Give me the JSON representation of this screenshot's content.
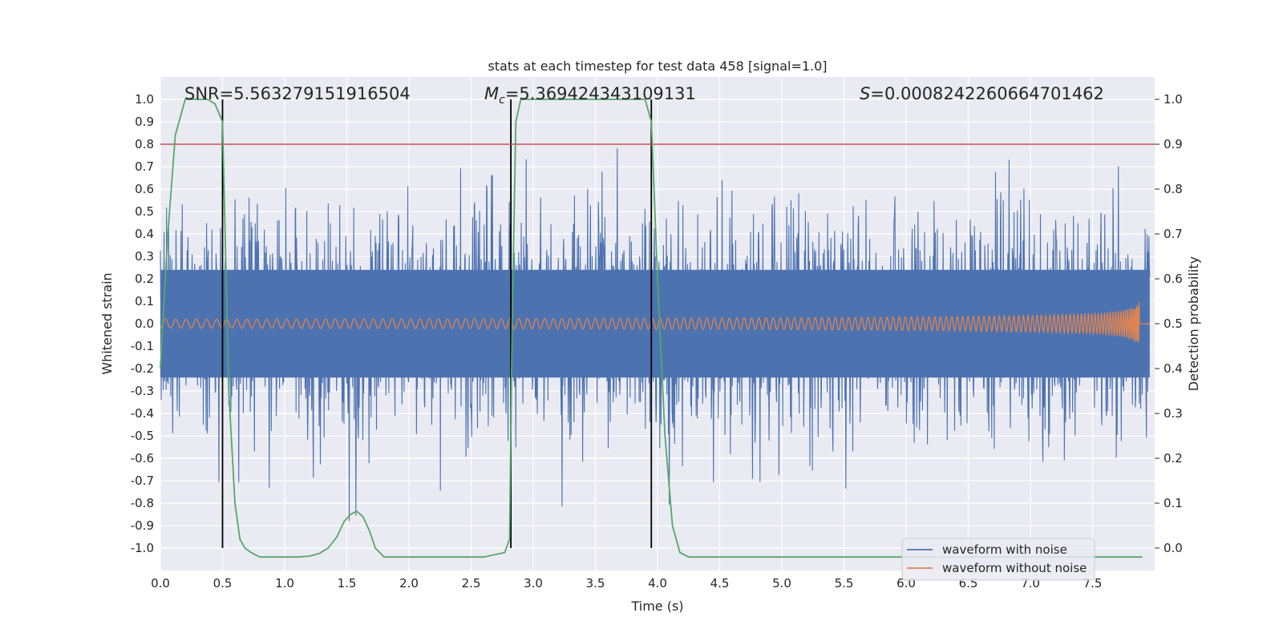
{
  "chart_data": {
    "type": "line",
    "title": "stats at each timestep for test data 458 [signal=1.0]",
    "xlabel": "Time (s)",
    "ylabel": "Whitened strain",
    "y2label": "Detection probability",
    "xlim": [
      0.0,
      8.0
    ],
    "ylim": [
      -1.1,
      1.1
    ],
    "y2lim": [
      -0.05,
      1.05
    ],
    "xticks": [
      "0.0",
      "0.5",
      "1.0",
      "1.5",
      "2.0",
      "2.5",
      "3.0",
      "3.5",
      "4.0",
      "4.5",
      "5.0",
      "5.5",
      "6.0",
      "6.5",
      "7.0",
      "7.5"
    ],
    "yticks": [
      "1.0",
      "0.9",
      "0.8",
      "0.7",
      "0.6",
      "0.5",
      "0.4",
      "0.3",
      "0.2",
      "0.1",
      "0.0",
      "-0.1",
      "-0.2",
      "-0.3",
      "-0.4",
      "-0.5",
      "-0.6",
      "-0.7",
      "-0.8",
      "-0.9",
      "-1.0"
    ],
    "y2ticks": [
      "1.0",
      "0.9",
      "0.8",
      "0.7",
      "0.6",
      "0.5",
      "0.4",
      "0.3",
      "0.2",
      "0.1",
      "0.0"
    ],
    "annotations": {
      "snr": "SNR=5.563279151916504",
      "mc_symbol": "M",
      "mc_sub": "c",
      "mc_value": "=5.369424343109131",
      "s_symbol": "S",
      "s_value": "=0.0008242260664701462"
    },
    "threshold": {
      "y2": 0.9,
      "color": "#c44e52"
    },
    "vlines_x": [
      0.5,
      2.82,
      3.95
    ],
    "series": [
      {
        "name": "waveform with noise",
        "color": "#4c72b0",
        "amplitude_range": [
          -1.0,
          1.0
        ]
      },
      {
        "name": "waveform without noise",
        "color": "#dd8452",
        "start_amplitude": 0.02,
        "peak_amplitude": 0.15,
        "merger_time": 7.88
      },
      {
        "name": "detection probability",
        "color": "#55a868",
        "axis": "y2",
        "x": [
          0.0,
          0.06,
          0.12,
          0.2,
          0.3,
          0.38,
          0.44,
          0.5,
          0.55,
          0.6,
          0.64,
          0.68,
          0.73,
          0.8,
          0.95,
          1.1,
          1.2,
          1.28,
          1.35,
          1.42,
          1.48,
          1.53,
          1.58,
          1.63,
          1.68,
          1.73,
          1.8,
          1.95,
          2.6,
          2.77,
          2.81,
          2.83,
          2.86,
          2.9,
          3.0,
          3.5,
          3.9,
          3.95,
          4.0,
          4.06,
          4.12,
          4.18,
          4.25,
          4.35,
          7.9
        ],
        "y": [
          0.4,
          0.7,
          0.92,
          1.0,
          1.0,
          1.0,
          0.99,
          0.95,
          0.35,
          0.1,
          0.02,
          0.0,
          -0.01,
          -0.02,
          -0.02,
          -0.02,
          -0.018,
          -0.012,
          0.0,
          0.025,
          0.06,
          0.075,
          0.082,
          0.07,
          0.04,
          0.0,
          -0.02,
          -0.02,
          -0.02,
          -0.01,
          0.02,
          0.5,
          0.95,
          1.0,
          1.0,
          1.0,
          1.0,
          0.95,
          0.6,
          0.25,
          0.05,
          -0.01,
          -0.02,
          -0.02,
          -0.02
        ]
      }
    ],
    "legend": {
      "location": "lower-right",
      "entries": [
        "waveform with noise",
        "waveform without noise"
      ]
    }
  }
}
